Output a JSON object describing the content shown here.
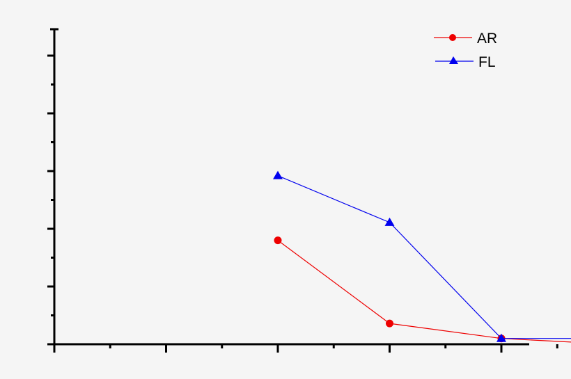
{
  "chart_data": {
    "type": "line",
    "title": "",
    "xlabel": "",
    "ylabel": "",
    "x": [
      1,
      2,
      3,
      4
    ],
    "xlim": [
      -1,
      4
    ],
    "ylim": [
      0,
      5.45
    ],
    "x_ticks_major": [
      -1,
      0,
      1,
      2,
      3,
      4
    ],
    "y_ticks_major": [
      0,
      1,
      2,
      3,
      4,
      5
    ],
    "tick_labels_shown": false,
    "grid": false,
    "legend_position": "upper right",
    "series": [
      {
        "name": "AR",
        "color": "#ee0000",
        "marker": "circle",
        "values": [
          1.8,
          0.36,
          0.1,
          0.0
        ]
      },
      {
        "name": "FL",
        "color": "#0000ee",
        "marker": "triangle",
        "values": [
          2.92,
          2.11,
          0.1,
          0.1
        ]
      }
    ]
  },
  "legend": {
    "items": [
      {
        "label": "AR",
        "color": "#ee0000"
      },
      {
        "label": "FL",
        "color": "#0000ee"
      }
    ]
  }
}
